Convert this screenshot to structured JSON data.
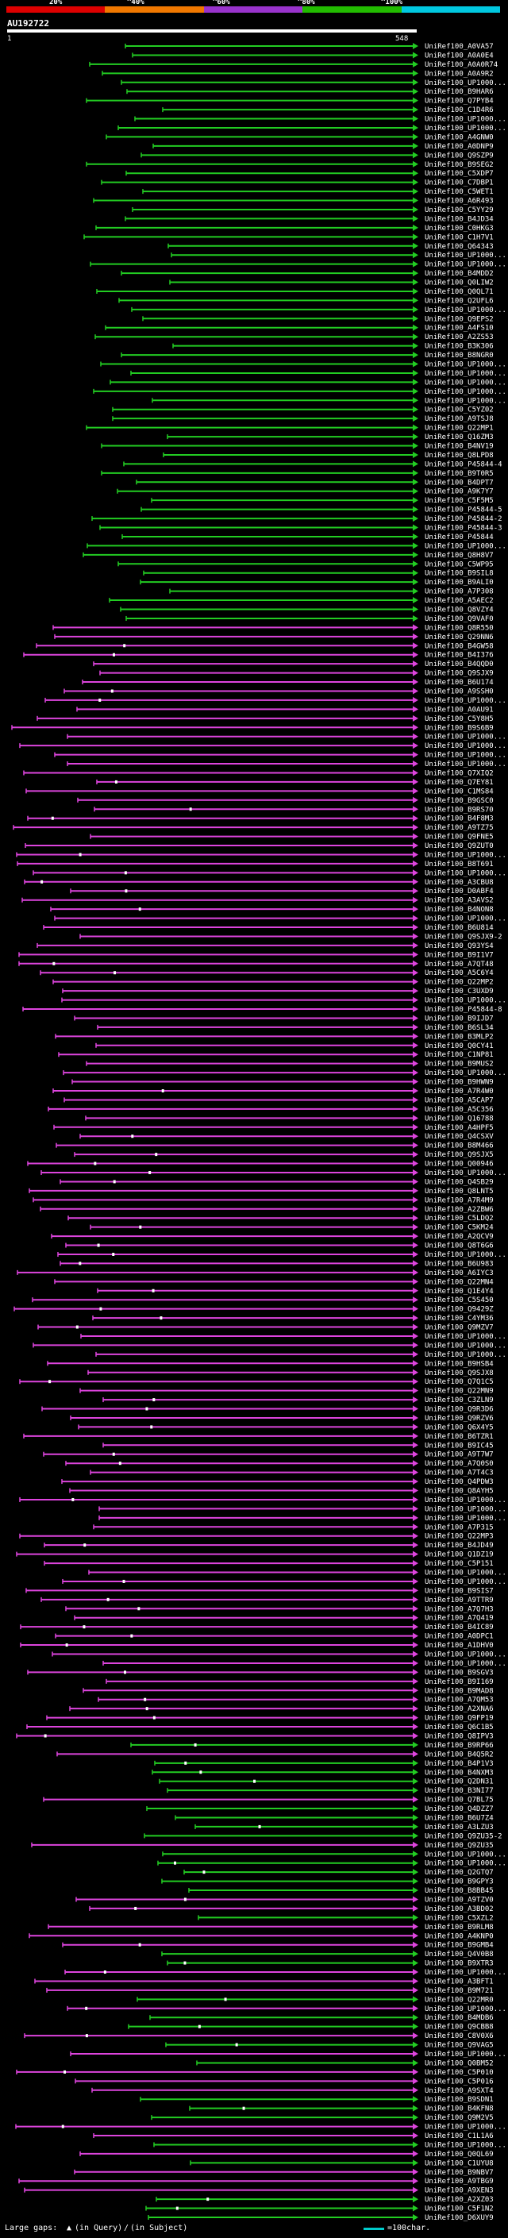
{
  "scale": {
    "labels": [
      "20%",
      "^40%",
      "^60%",
      "^80%",
      "^100%"
    ],
    "colors": [
      "#dd0000",
      "#f07800",
      "#9933cc",
      "#22bb00",
      "#00c8e0"
    ]
  },
  "query": {
    "name": "AU192722",
    "start": "1",
    "end": "548"
  },
  "legend": {
    "prefix": "Large gaps:",
    "query_gap": "(in Query)",
    "subject_gap": "(in Subject)",
    "scale_note": "=100char."
  },
  "colors": {
    "green": "#22cc22",
    "magenta": "#dd44dd",
    "white": "#ffffff",
    "teal": "#00cccc"
  },
  "hits_green": [
    "UniRef100_A0VA57",
    "UniRef100_A0A0E4",
    "UniRef100_A0A0R74",
    "UniRef100_A0A9R2",
    "UniRef100_UP1000...",
    "UniRef100_B9HAR6",
    "UniRef100_Q7PYB4",
    "UniRef100_C1D4R6",
    "UniRef100_UP1000...",
    "UniRef100_UP1000...",
    "UniRef100_A4GNW0",
    "UniRef100_A0DNP9",
    "UniRef100_Q9SZP9",
    "UniRef100_B9SEG2",
    "UniRef100_C5XDP7",
    "UniRef100_C7DBP1",
    "UniRef100_C5WET1",
    "UniRef100_A6R493",
    "UniRef100_C5YY29",
    "UniRef100_B4JD34",
    "UniRef100_C0HKG3",
    "UniRef100_C1H7V1",
    "UniRef100_Q64343",
    "UniRef100_UP1000...",
    "UniRef100_UP1000...",
    "UniRef100_B4MDD2",
    "UniRef100_Q0LIW2",
    "UniRef100_Q0QL71",
    "UniRef100_Q2UFL6",
    "UniRef100_UP1000...",
    "UniRef100_Q9EPS2",
    "UniRef100_A4FS10",
    "UniRef100_A2ZS53",
    "UniRef100_B3K306",
    "UniRef100_B8NGR0",
    "UniRef100_UP1000...",
    "UniRef100_UP1000...",
    "UniRef100_UP1000...",
    "UniRef100_UP1000...",
    "UniRef100_UP1000...",
    "UniRef100_C5YZ02",
    "UniRef100_A9TSJ8",
    "UniRef100_Q22MP1",
    "UniRef100_Q16ZM3",
    "UniRef100_B4NV19",
    "UniRef100_Q8LPD8",
    "UniRef100_P45844-4",
    "UniRef100_B9T0R5",
    "UniRef100_B4DPT7",
    "UniRef100_A9K7Y7",
    "UniRef100_C5F5M5",
    "UniRef100_P45844-5",
    "UniRef100_P45844-2",
    "UniRef100_P45844-3",
    "UniRef100_P45844",
    "UniRef100_UP1000...",
    "UniRef100_Q8H8V7",
    "UniRef100_C5WP95",
    "UniRef100_B9SIL8",
    "UniRef100_B9ALI0",
    "UniRef100_A7P308",
    "UniRef100_A5AEC2",
    "UniRef100_Q8VZY4",
    "UniRef100_Q9VAF0"
  ],
  "hits_magenta": [
    "UniRef100_Q8R550",
    "UniRef100_Q29NN6",
    "UniRef100_B4GW58",
    "UniRef100_B4I376",
    "UniRef100_B4QQD0",
    "UniRef100_Q9SJX9",
    "UniRef100_B6U174",
    "UniRef100_A9SSH0",
    "UniRef100_UP1000...",
    "UniRef100_A0AU91",
    "UniRef100_C5Y8H5",
    "UniRef100_B9S6B9",
    "UniRef100_UP1000...",
    "UniRef100_UP1000...",
    "UniRef100_UP1000...",
    "UniRef100_UP1000...",
    "UniRef100_Q7XIQ2",
    "UniRef100_Q7EY81",
    "UniRef100_C1MS84",
    "UniRef100_B9GSC0",
    "UniRef100_B9RS70",
    "UniRef100_B4F8M3",
    "UniRef100_A9TZ75",
    "UniRef100_Q9FNE5",
    "UniRef100_Q9ZUT0",
    "UniRef100_UP1000...",
    "UniRef100_B8T691",
    "UniRef100_UP1000...",
    "UniRef100_A3CBU8",
    "UniRef100_D0ABF4",
    "UniRef100_A3AVS2",
    "UniRef100_B4NON8",
    "UniRef100_UP1000...",
    "UniRef100_B6U814",
    "UniRef100_Q9SJX9-2",
    "UniRef100_Q93YS4",
    "UniRef100_B9I1V7",
    "UniRef100_A7QT48",
    "UniRef100_A5C6Y4",
    "UniRef100_Q22MP2",
    "UniRef100_C3UXD9",
    "UniRef100_UP1000...",
    "UniRef100_P45844-8",
    "UniRef100_B9IJD7",
    "UniRef100_B6SL34",
    "UniRef100_B3MLP2",
    "UniRef100_Q0CY41",
    "UniRef100_C1NP81",
    "UniRef100_B9MUS2",
    "UniRef100_UP1000...",
    "UniRef100_B9HWN9",
    "UniRef100_A7R4W0",
    "UniRef100_A5CAP7",
    "UniRef100_A5C356",
    "UniRef100_Q16788",
    "UniRef100_A4HPF5",
    "UniRef100_Q4CSXV",
    "UniRef100_B8M466",
    "UniRef100_Q9SJX5",
    "UniRef100_Q00946",
    "UniRef100_UP1000...",
    "UniRef100_Q4SB29",
    "UniRef100_Q8LNT5",
    "UniRef100_A7R4M9",
    "UniRef100_A2ZBW6",
    "UniRef100_C5LDQ2",
    "UniRef100_C5KM24",
    "UniRef100_A2QCV9",
    "UniRef100_Q8T6G6",
    "UniRef100_UP1000...",
    "UniRef100_B6U983",
    "UniRef100_A6IYC3",
    "UniRef100_Q22MN4",
    "UniRef100_Q1E4Y4",
    "UniRef100_C5S450",
    "UniRef100_Q9429Z",
    "UniRef100_C4YM36",
    "UniRef100_Q9MZV7",
    "UniRef100_UP1000...",
    "UniRef100_UP1000...",
    "UniRef100_UP1000...",
    "UniRef100_B9HSB4",
    "UniRef100_Q9SJX8",
    "UniRef100_Q7Q1C5",
    "UniRef100_Q22MN9",
    "UniRef100_C3ZLN9",
    "UniRef100_Q9R3D6",
    "UniRef100_Q9RZV6",
    "UniRef100_Q6X4Y5",
    "UniRef100_B6TZR1",
    "UniRef100_B9IC45",
    "UniRef100_A9T7W7",
    "UniRef100_A7Q0S0",
    "UniRef100_A7T4C3",
    "UniRef100_Q4PDW3",
    "UniRef100_Q8AYH5",
    "UniRef100_UP1000...",
    "UniRef100_UP1000...",
    "UniRef100_UP1000...",
    "UniRef100_A7P315",
    "UniRef100_Q22MP3",
    "UniRef100_B4JD49",
    "UniRef100_Q1DZ19",
    "UniRef100_C5P151",
    "UniRef100_UP1000...",
    "UniRef100_UP1000...",
    "UniRef100_B9SIS7",
    "UniRef100_A9TTR9",
    "UniRef100_A7Q7H3",
    "UniRef100_A7Q419",
    "UniRef100_B4IC89",
    "UniRef100_A0DPC1",
    "UniRef100_A1DHV0",
    "UniRef100_UP1000...",
    "UniRef100_UP1000...",
    "UniRef100_B9SGV3",
    "UniRef100_B9I169",
    "UniRef100_B9MAD8",
    "UniRef100_A7QM53",
    "UniRef100_A2XNA6",
    "UniRef100_Q9FP19"
  ],
  "hits_mixed": [
    "UniRef100_Q6C1B5",
    "UniRef100_Q8IPV3",
    "UniRef100_B9RP66",
    "UniRef100_B4Q5R2",
    "UniRef100_B4P1V3",
    "UniRef100_B4NXM3",
    "UniRef100_Q2DN31",
    "UniRef100_B3NI77",
    "UniRef100_Q7BL75",
    "UniRef100_Q4DZZ7",
    "UniRef100_B6U7Z4",
    "UniRef100_A3LZU3",
    "UniRef100_Q9ZU35-2",
    "UniRef100_Q9ZU35",
    "UniRef100_UP1000...",
    "UniRef100_UP1000...",
    "UniRef100_Q2GTQ7",
    "UniRef100_B9GPY3",
    "UniRef100_B8BB45",
    "UniRef100_A9TZV0",
    "UniRef100_A3BD02",
    "UniRef100_C5XZL2",
    "UniRef100_B9RLM8",
    "UniRef100_A4KNP0",
    "UniRef100_B9GMB4",
    "UniRef100_Q4V0B8",
    "UniRef100_B9XTR3",
    "UniRef100_UP1000...",
    "UniRef100_A3BFT1",
    "UniRef100_B9M721",
    "UniRef100_Q22MR0",
    "UniRef100_UP1000...",
    "UniRef100_B4MDB6",
    "UniRef100_Q9CBB8",
    "UniRef100_C8V0X6",
    "UniRef100_Q9VAG5",
    "UniRef100_UP1000...",
    "UniRef100_Q0BM52",
    "UniRef100_C5P010",
    "UniRef100_C5P016",
    "UniRef100_A9SXT4",
    "UniRef100_B9SDN1",
    "UniRef100_B4KFN8",
    "UniRef100_Q9M2V5",
    "UniRef100_UP1000...",
    "UniRef100_C1L1A6",
    "UniRef100_UP1000...",
    "UniRef100_Q0QL69",
    "UniRef100_C1UYU8",
    "UniRef100_B9NBV7",
    "UniRef100_A9TBG9",
    "UniRef100_A9XEN3",
    "UniRef100_A2XZ03",
    "UniRef100_C5F1N2",
    "UniRef100_D6XUY9"
  ]
}
